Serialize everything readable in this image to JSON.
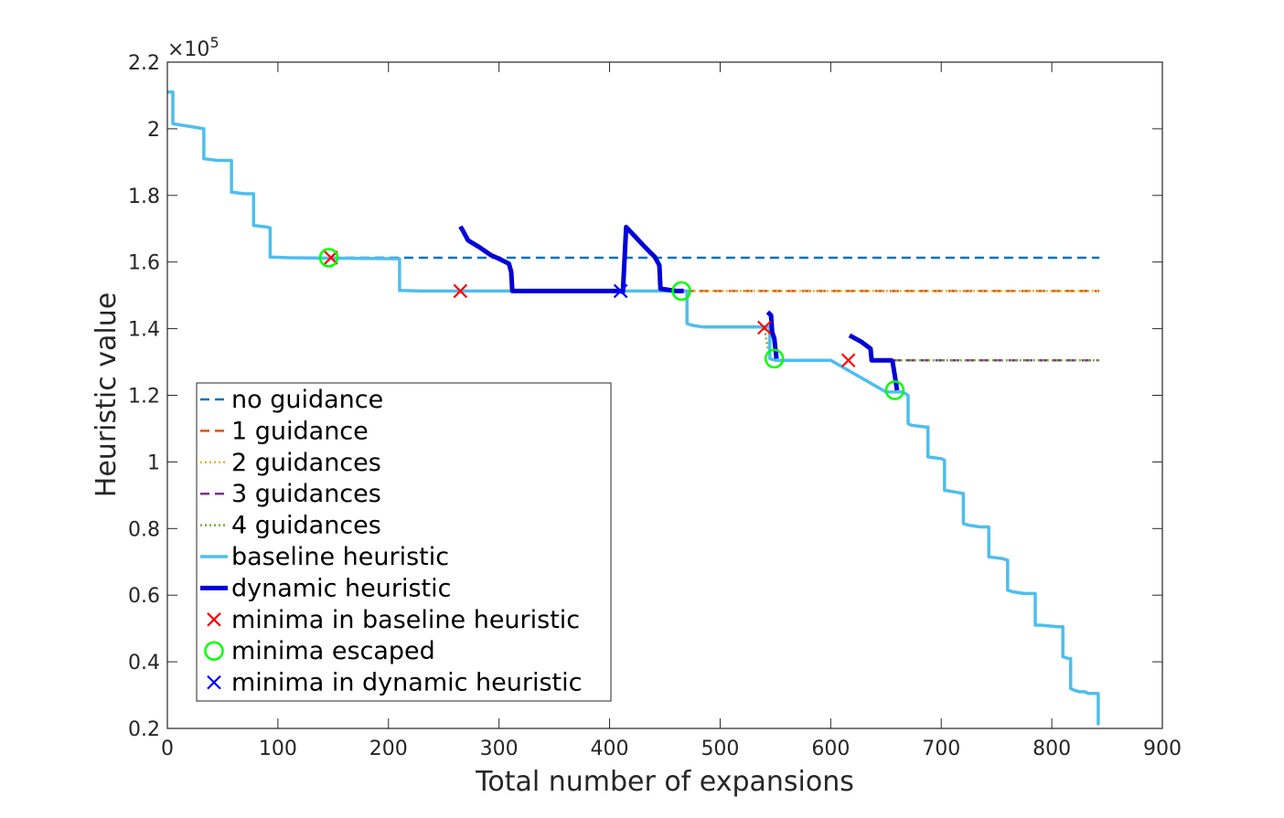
{
  "chart_data": {
    "type": "line",
    "xlabel": "Total number of expansions",
    "ylabel": "Heuristic value",
    "y_exponent": "×10",
    "y_exponent_power": "5",
    "xlim": [
      0,
      900
    ],
    "ylim": [
      0.2,
      2.2
    ],
    "y_scale_multiplier": 100000,
    "grid": false,
    "legend_placement": "bottom-left",
    "x_ticks": [
      "0",
      "100",
      "200",
      "300",
      "400",
      "500",
      "600",
      "700",
      "800",
      "900"
    ],
    "x_tick_values": [
      0,
      100,
      200,
      300,
      400,
      500,
      600,
      700,
      800,
      900
    ],
    "y_ticks": [
      "0.2",
      "0.4",
      "0.6",
      "0.8",
      "1",
      "1.2",
      "1.4",
      "1.6",
      "1.8",
      "2",
      "2.2"
    ],
    "y_tick_values": [
      0.2,
      0.4,
      0.6,
      0.8,
      1.0,
      1.2,
      1.4,
      1.6,
      1.8,
      2.0,
      2.2
    ],
    "series": [
      {
        "name": "no guidance",
        "style": "dashed",
        "color": "#0072BD",
        "width": 2.5,
        "x": [
          148,
          843
        ],
        "y": [
          1.613,
          1.613
        ]
      },
      {
        "name": "1 guidance",
        "style": "dashed",
        "color": "#D95319",
        "width": 2.5,
        "x": [
          468,
          843
        ],
        "y": [
          1.513,
          1.513
        ]
      },
      {
        "name": "2 guidances",
        "style": "dotted",
        "color": "#EDB120",
        "width": 2.5,
        "x": [
          468,
          843
        ],
        "y": [
          1.513,
          1.513
        ]
      },
      {
        "name": "3 guidances",
        "style": "dashed",
        "color": "#7E2F8E",
        "width": 2.5,
        "x": [
          655,
          843
        ],
        "y": [
          1.305,
          1.305
        ]
      },
      {
        "name": "4 guidances",
        "style": "dotted",
        "color": "#77AC30",
        "width": 2.5,
        "x": [
          655,
          843,
          null,
          540,
          545
        ],
        "y": [
          1.305,
          1.305,
          null,
          1.4,
          1.31
        ]
      },
      {
        "name": "baseline heuristic",
        "style": "solid",
        "color": "#4DBEEE",
        "width": 3.5,
        "x": [
          0,
          5,
          5,
          15,
          33,
          33,
          45,
          58,
          58,
          70,
          78,
          78,
          90,
          93,
          93,
          110,
          210,
          210,
          230,
          300,
          320,
          465,
          470,
          470,
          475,
          485,
          545,
          545,
          550,
          560,
          570,
          600,
          650,
          665,
          670,
          670,
          673,
          685,
          688,
          688,
          700,
          703,
          703,
          712,
          720,
          720,
          725,
          735,
          740,
          743,
          743,
          755,
          760,
          760,
          765,
          775,
          785,
          785,
          790,
          805,
          810,
          810,
          815,
          817,
          817,
          820,
          825,
          830,
          833,
          833,
          840,
          842,
          842
        ],
        "y": [
          2.11,
          2.11,
          2.015,
          2.01,
          2.0,
          1.91,
          1.905,
          1.905,
          1.81,
          1.805,
          1.805,
          1.71,
          1.705,
          1.703,
          1.615,
          1.613,
          1.61,
          1.515,
          1.513,
          1.513,
          1.513,
          1.513,
          1.513,
          1.415,
          1.41,
          1.405,
          1.405,
          1.31,
          1.305,
          1.305,
          1.305,
          1.305,
          1.21,
          1.21,
          1.2,
          1.115,
          1.11,
          1.105,
          1.105,
          1.015,
          1.01,
          1.005,
          0.915,
          0.91,
          0.905,
          0.815,
          0.81,
          0.805,
          0.805,
          0.805,
          0.715,
          0.71,
          0.705,
          0.615,
          0.61,
          0.605,
          0.605,
          0.51,
          0.51,
          0.505,
          0.505,
          0.415,
          0.41,
          0.41,
          0.32,
          0.315,
          0.31,
          0.31,
          0.305,
          0.305,
          0.305,
          0.305,
          0.21
        ]
      },
      {
        "name": "dynamic heuristic",
        "style": "solid",
        "color": "#0000D9",
        "width": 5,
        "x": [
          265,
          268,
          272,
          282,
          293,
          300,
          309,
          311,
          312,
          330,
          400,
          410,
          412,
          415,
          422,
          432,
          441,
          445,
          446,
          460,
          467,
          null,
          543,
          546,
          547,
          549,
          551,
          null,
          617,
          628,
          634,
          636,
          637,
          650,
          655,
          656,
          658,
          660
        ],
        "y": [
          1.707,
          1.69,
          1.665,
          1.645,
          1.62,
          1.61,
          1.595,
          1.57,
          1.513,
          1.513,
          1.513,
          1.513,
          1.51,
          1.705,
          1.68,
          1.645,
          1.615,
          1.59,
          1.52,
          1.513,
          1.513,
          null,
          1.45,
          1.44,
          1.39,
          1.37,
          1.31,
          null,
          1.38,
          1.36,
          1.345,
          1.34,
          1.305,
          1.305,
          1.305,
          1.3,
          1.26,
          1.215
        ]
      }
    ],
    "markers": [
      {
        "name": "minima in baseline heuristic",
        "symbol": "x",
        "color": "#FF0000",
        "x": [
          148,
          265,
          540,
          616
        ],
        "y": [
          1.613,
          1.513,
          1.403,
          1.305
        ]
      },
      {
        "name": "minima escaped",
        "symbol": "o",
        "color": "#00FF00",
        "x": [
          146,
          465,
          549,
          658
        ],
        "y": [
          1.613,
          1.513,
          1.31,
          1.215
        ]
      },
      {
        "name": "minima in dynamic heuristic",
        "symbol": "x",
        "color": "#0000FF",
        "x": [
          410
        ],
        "y": [
          1.513
        ]
      }
    ],
    "legend_order": [
      "no guidance",
      "1 guidance",
      "2 guidances",
      "3 guidances",
      "4 guidances",
      "baseline heuristic",
      "dynamic heuristic",
      "minima in baseline heuristic",
      "minima escaped",
      "minima in dynamic heuristic"
    ]
  }
}
